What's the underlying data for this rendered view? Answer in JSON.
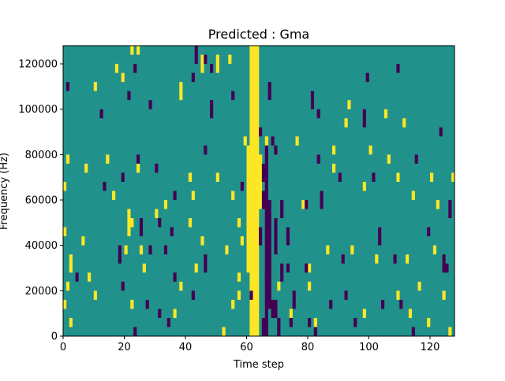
{
  "chart_data": {
    "type": "heatmap",
    "title": "Predicted : Gma",
    "xlabel": "Time step",
    "ylabel": "Frequency (Hz)",
    "xlim": [
      0,
      128
    ],
    "ylim": [
      0,
      128000
    ],
    "xticks": [
      0,
      20,
      40,
      60,
      80,
      100,
      120
    ],
    "yticks": [
      0,
      20000,
      40000,
      60000,
      80000,
      100000,
      120000
    ],
    "xtick_labels": [
      "0",
      "20",
      "40",
      "60",
      "80",
      "100",
      "120"
    ],
    "ytick_labels": [
      "0",
      "20000",
      "40000",
      "60000",
      "80000",
      "100000",
      "120000"
    ],
    "bin_height": 4000,
    "colormap": "viridis",
    "colors": {
      "background": "#21918c",
      "high": "#fde725",
      "low": "#440154"
    },
    "grid": false,
    "high_cells": [
      [
        61,
        0,
        128000
      ],
      [
        62,
        0,
        128000
      ],
      [
        63,
        0,
        128000
      ],
      [
        60,
        28000,
        84000
      ],
      [
        64,
        56000,
        80000
      ],
      [
        22,
        124000,
        128000
      ],
      [
        24,
        124000,
        128000
      ],
      [
        17,
        116000,
        120000
      ],
      [
        19,
        112000,
        116000
      ],
      [
        45,
        116000,
        124000
      ],
      [
        50,
        116000,
        124000
      ],
      [
        54,
        120000,
        124000
      ],
      [
        62,
        104000,
        112000
      ],
      [
        10,
        108000,
        112000
      ],
      [
        38,
        104000,
        112000
      ],
      [
        93,
        100000,
        104000
      ],
      [
        105,
        96000,
        100000
      ],
      [
        92,
        92000,
        96000
      ],
      [
        111,
        92000,
        96000
      ],
      [
        59,
        84000,
        88000
      ],
      [
        66,
        84000,
        88000
      ],
      [
        76,
        84000,
        88000
      ],
      [
        88,
        80000,
        84000
      ],
      [
        100,
        80000,
        84000
      ],
      [
        106,
        76000,
        80000
      ],
      [
        1,
        76000,
        80000
      ],
      [
        7,
        72000,
        76000
      ],
      [
        14,
        76000,
        80000
      ],
      [
        24,
        72000,
        76000
      ],
      [
        41,
        68000,
        72000
      ],
      [
        50,
        68000,
        72000
      ],
      [
        88,
        72000,
        76000
      ],
      [
        109,
        68000,
        72000
      ],
      [
        120,
        68000,
        72000
      ],
      [
        127,
        68000,
        72000
      ],
      [
        0,
        64000,
        68000
      ],
      [
        16,
        60000,
        64000
      ],
      [
        33,
        56000,
        60000
      ],
      [
        42,
        60000,
        64000
      ],
      [
        55,
        60000,
        64000
      ],
      [
        78,
        56000,
        60000
      ],
      [
        98,
        64000,
        68000
      ],
      [
        114,
        60000,
        64000
      ],
      [
        122,
        56000,
        60000
      ],
      [
        21,
        44000,
        56000
      ],
      [
        22,
        48000,
        52000
      ],
      [
        30,
        52000,
        56000
      ],
      [
        41,
        48000,
        52000
      ],
      [
        57,
        48000,
        52000
      ],
      [
        0,
        44000,
        48000
      ],
      [
        6,
        40000,
        44000
      ],
      [
        20,
        36000,
        40000
      ],
      [
        25,
        36000,
        40000
      ],
      [
        45,
        40000,
        44000
      ],
      [
        53,
        36000,
        40000
      ],
      [
        58,
        40000,
        44000
      ],
      [
        86,
        36000,
        40000
      ],
      [
        94,
        36000,
        40000
      ],
      [
        102,
        32000,
        36000
      ],
      [
        112,
        32000,
        36000
      ],
      [
        121,
        36000,
        40000
      ],
      [
        2,
        28000,
        36000
      ],
      [
        8,
        24000,
        28000
      ],
      [
        26,
        28000,
        32000
      ],
      [
        43,
        28000,
        32000
      ],
      [
        57,
        24000,
        28000
      ],
      [
        80,
        28000,
        32000
      ],
      [
        1,
        20000,
        24000
      ],
      [
        10,
        16000,
        20000
      ],
      [
        38,
        20000,
        24000
      ],
      [
        57,
        16000,
        20000
      ],
      [
        70,
        20000,
        24000
      ],
      [
        80,
        20000,
        24000
      ],
      [
        109,
        16000,
        20000
      ],
      [
        116,
        20000,
        24000
      ],
      [
        124,
        16000,
        20000
      ],
      [
        0,
        12000,
        16000
      ],
      [
        2,
        4000,
        8000
      ],
      [
        22,
        12000,
        16000
      ],
      [
        36,
        8000,
        12000
      ],
      [
        55,
        12000,
        16000
      ],
      [
        74,
        8000,
        12000
      ],
      [
        82,
        4000,
        8000
      ],
      [
        98,
        8000,
        12000
      ],
      [
        113,
        8000,
        12000
      ],
      [
        119,
        4000,
        8000
      ],
      [
        126,
        0,
        4000
      ],
      [
        52,
        0,
        4000
      ]
    ],
    "low_cells": [
      [
        66,
        0,
        84000
      ],
      [
        67,
        12000,
        60000
      ],
      [
        68,
        8000,
        16000
      ],
      [
        69,
        8000,
        16000
      ],
      [
        70,
        0,
        8000
      ],
      [
        66,
        24000,
        28000
      ],
      [
        23,
        116000,
        120000
      ],
      [
        43,
        120000,
        128000
      ],
      [
        46,
        120000,
        124000
      ],
      [
        48,
        116000,
        120000
      ],
      [
        67,
        104000,
        112000
      ],
      [
        21,
        104000,
        108000
      ],
      [
        28,
        100000,
        104000
      ],
      [
        42,
        112000,
        116000
      ],
      [
        55,
        104000,
        108000
      ],
      [
        81,
        100000,
        108000
      ],
      [
        99,
        112000,
        116000
      ],
      [
        109,
        116000,
        120000
      ],
      [
        1,
        108000,
        112000
      ],
      [
        12,
        96000,
        100000
      ],
      [
        48,
        96000,
        104000
      ],
      [
        83,
        96000,
        100000
      ],
      [
        98,
        92000,
        100000
      ],
      [
        123,
        88000,
        92000
      ],
      [
        64,
        88000,
        92000
      ],
      [
        68,
        84000,
        88000
      ],
      [
        24,
        76000,
        80000
      ],
      [
        46,
        80000,
        84000
      ],
      [
        69,
        80000,
        84000
      ],
      [
        83,
        76000,
        80000
      ],
      [
        115,
        76000,
        80000
      ],
      [
        19,
        68000,
        72000
      ],
      [
        30,
        72000,
        76000
      ],
      [
        65,
        68000,
        76000
      ],
      [
        90,
        68000,
        72000
      ],
      [
        101,
        68000,
        72000
      ],
      [
        13,
        64000,
        68000
      ],
      [
        36,
        60000,
        64000
      ],
      [
        58,
        64000,
        68000
      ],
      [
        65,
        56000,
        64000
      ],
      [
        71,
        52000,
        60000
      ],
      [
        79,
        56000,
        60000
      ],
      [
        84,
        56000,
        64000
      ],
      [
        126,
        52000,
        60000
      ],
      [
        25,
        44000,
        52000
      ],
      [
        31,
        48000,
        52000
      ],
      [
        35,
        44000,
        48000
      ],
      [
        64,
        40000,
        48000
      ],
      [
        69,
        36000,
        52000
      ],
      [
        73,
        40000,
        48000
      ],
      [
        103,
        40000,
        48000
      ],
      [
        119,
        44000,
        48000
      ],
      [
        18,
        32000,
        40000
      ],
      [
        28,
        36000,
        40000
      ],
      [
        33,
        36000,
        40000
      ],
      [
        46,
        28000,
        36000
      ],
      [
        73,
        28000,
        32000
      ],
      [
        91,
        32000,
        36000
      ],
      [
        108,
        32000,
        36000
      ],
      [
        125,
        28000,
        32000
      ],
      [
        4,
        24000,
        28000
      ],
      [
        19,
        20000,
        24000
      ],
      [
        36,
        24000,
        28000
      ],
      [
        71,
        24000,
        32000
      ],
      [
        79,
        28000,
        32000
      ],
      [
        92,
        16000,
        20000
      ],
      [
        110,
        12000,
        16000
      ],
      [
        124,
        28000,
        36000
      ],
      [
        27,
        12000,
        16000
      ],
      [
        31,
        8000,
        12000
      ],
      [
        42,
        16000,
        20000
      ],
      [
        61,
        16000,
        20000
      ],
      [
        75,
        12000,
        20000
      ],
      [
        87,
        12000,
        16000
      ],
      [
        104,
        12000,
        16000
      ],
      [
        23,
        0,
        4000
      ],
      [
        34,
        4000,
        8000
      ],
      [
        65,
        0,
        8000
      ],
      [
        74,
        4000,
        8000
      ],
      [
        80,
        4000,
        8000
      ],
      [
        95,
        4000,
        8000
      ],
      [
        114,
        0,
        4000
      ],
      [
        82,
        0,
        4000
      ]
    ]
  }
}
